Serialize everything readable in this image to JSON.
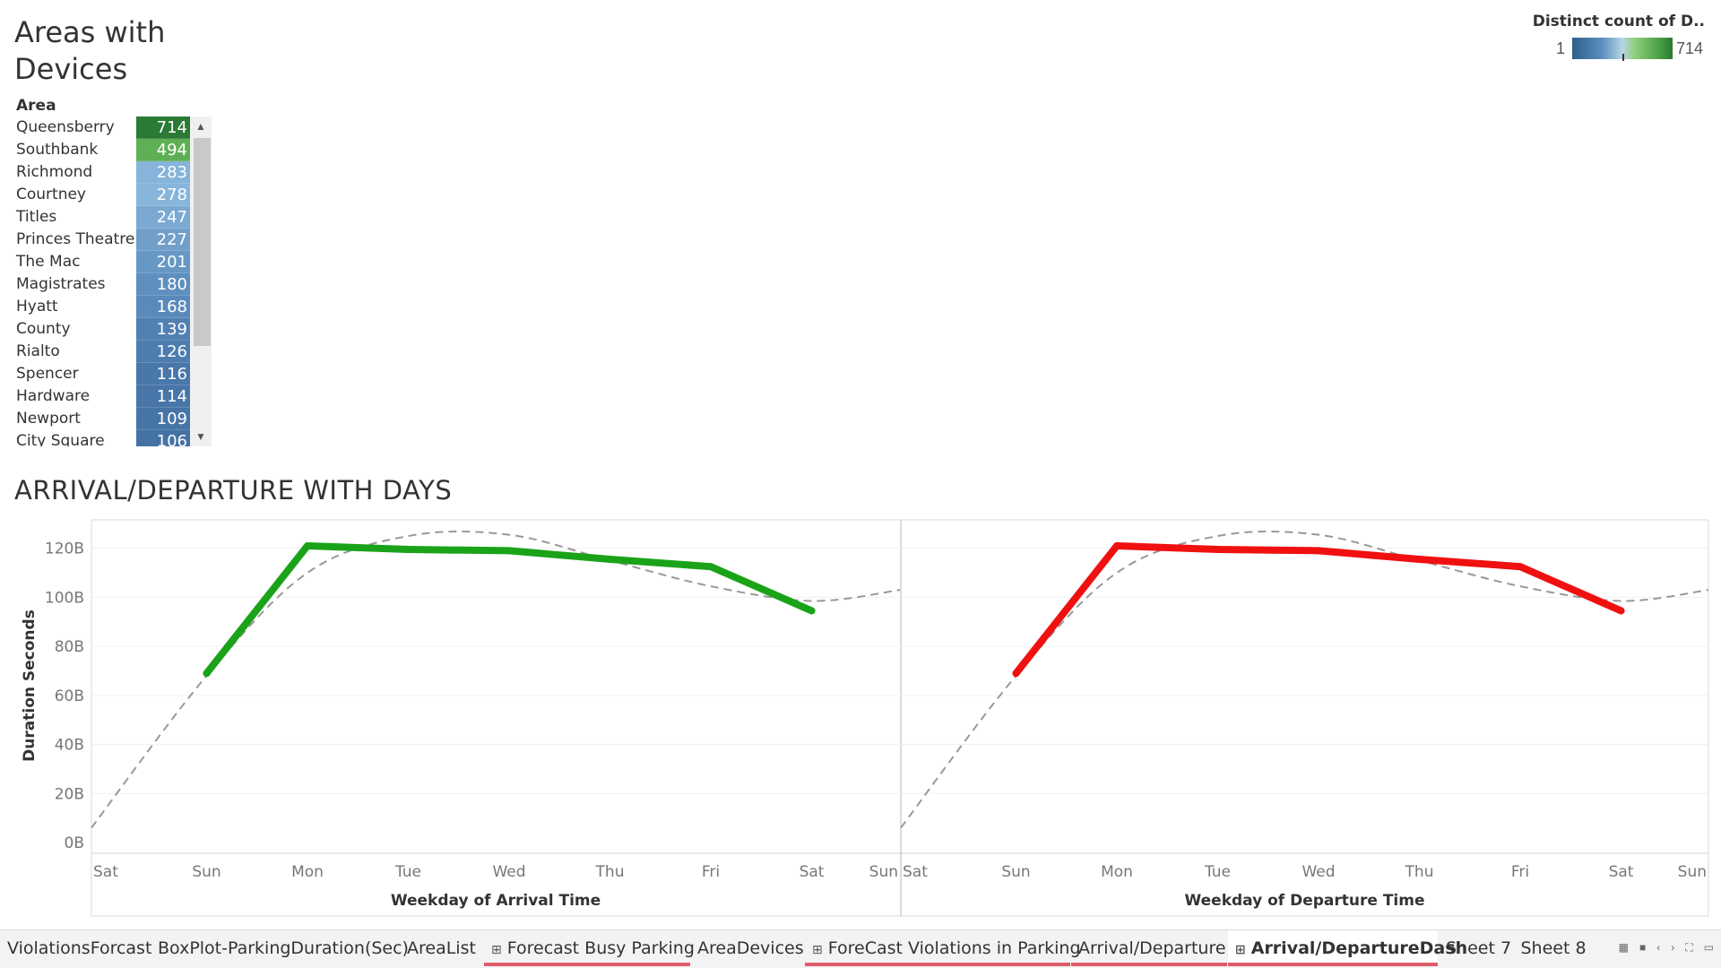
{
  "areas": {
    "title_line1": "Areas with",
    "title_line2": "Devices",
    "column_header": "Area",
    "rows": [
      {
        "name": "Queensberry",
        "count": 714,
        "color": "#2a7a34"
      },
      {
        "name": "Southbank",
        "count": 494,
        "color": "#5fb055"
      },
      {
        "name": "Richmond",
        "count": 283,
        "color": "#86b4da"
      },
      {
        "name": "Courtney",
        "count": 278,
        "color": "#88b6db"
      },
      {
        "name": "Titles",
        "count": 247,
        "color": "#7aa9d2"
      },
      {
        "name": "Princes Theatre",
        "count": 227,
        "color": "#719fca"
      },
      {
        "name": "The Mac",
        "count": 201,
        "color": "#6797c4"
      },
      {
        "name": "Magistrates",
        "count": 180,
        "color": "#5e8fbf"
      },
      {
        "name": "Hyatt",
        "count": 168,
        "color": "#5a8abb"
      },
      {
        "name": "County",
        "count": 139,
        "color": "#5180b2"
      },
      {
        "name": "Rialto",
        "count": 126,
        "color": "#4d7cae"
      },
      {
        "name": "Spencer",
        "count": 116,
        "color": "#4977aa"
      },
      {
        "name": "Hardware",
        "count": 114,
        "color": "#4876a9"
      },
      {
        "name": "Newport",
        "count": 109,
        "color": "#4674a7"
      },
      {
        "name": "City Square",
        "count": 106,
        "color": "#4472a5"
      }
    ],
    "scroll_up_icon": "chevron-up-icon",
    "scroll_down_icon": "chevron-down-icon"
  },
  "legend": {
    "title": "Distinct count of D..",
    "min": "1",
    "max": "714"
  },
  "chart": {
    "title": "ARRIVAL/DEPARTURE WITH DAYS",
    "ylabel": "Duration Seconds",
    "y_ticks": [
      "0B",
      "20B",
      "40B",
      "60B",
      "80B",
      "100B",
      "120B"
    ],
    "x_ticks": [
      "Sat",
      "Sun",
      "Mon",
      "Tue",
      "Wed",
      "Thu",
      "Fri",
      "Sat",
      "Sun"
    ]
  },
  "chart_data": [
    {
      "type": "line",
      "xlabel": "Weekday of Arrival Time",
      "ylabel": "Duration Seconds",
      "ylim": [
        0,
        130
      ],
      "y_unit": "B",
      "categories": [
        "Sun",
        "Mon",
        "Tue",
        "Wed",
        "Thu",
        "Fri",
        "Sat"
      ],
      "series": [
        {
          "values": [
            69,
            121,
            119.5,
            119,
            115.5,
            112.5,
            94.5
          ],
          "color": "#1aa318"
        }
      ],
      "trend_line": {
        "style": "dashed",
        "color": "#999999",
        "values_at_ticks": [
          6,
          68,
          110,
          125,
          125.5,
          115,
          104.5,
          98.5,
          103
        ]
      },
      "grid": true
    },
    {
      "type": "line",
      "xlabel": "Weekday of Departure Time",
      "ylabel": "Duration Seconds",
      "ylim": [
        0,
        130
      ],
      "y_unit": "B",
      "categories": [
        "Sun",
        "Mon",
        "Tue",
        "Wed",
        "Thu",
        "Fri",
        "Sat"
      ],
      "series": [
        {
          "values": [
            69,
            121,
            119.5,
            119,
            115.5,
            112.5,
            94.5
          ],
          "color": "#f01010"
        }
      ],
      "trend_line": {
        "style": "dashed",
        "color": "#999999",
        "values_at_ticks": [
          6,
          68,
          110,
          125,
          125.5,
          115,
          104.5,
          98.5,
          103
        ]
      },
      "grid": true
    }
  ],
  "tabs": [
    {
      "label": "ViolationsForcast",
      "dashboard": false,
      "underline": false,
      "active": false
    },
    {
      "label": "BoxPlot-ParkingDuration(Sec)",
      "dashboard": false,
      "underline": false,
      "active": false
    },
    {
      "label": "AreaList",
      "dashboard": false,
      "underline": false,
      "active": false
    },
    {
      "label": "Forecast Busy Parking",
      "dashboard": true,
      "underline": true,
      "active": false
    },
    {
      "label": "AreaDevices",
      "dashboard": false,
      "underline": false,
      "active": false
    },
    {
      "label": "ForeCast Violations in Parking",
      "dashboard": true,
      "underline": true,
      "active": false
    },
    {
      "label": "Arrival/Departure",
      "dashboard": false,
      "underline": true,
      "active": false
    },
    {
      "label": "Arrival/DepartureDash",
      "dashboard": true,
      "underline": true,
      "active": true
    },
    {
      "label": "Sheet 7",
      "dashboard": false,
      "underline": false,
      "active": false
    },
    {
      "label": "Sheet 8",
      "dashboard": false,
      "underline": false,
      "active": false
    }
  ],
  "tab_controls": [
    {
      "icon": "filmstrip-icon"
    },
    {
      "icon": "tab-view-icon"
    },
    {
      "icon": "scroll-left-icon"
    },
    {
      "icon": "scroll-right-icon"
    },
    {
      "icon": "fullscreen-icon"
    },
    {
      "icon": "presentation-icon"
    }
  ]
}
